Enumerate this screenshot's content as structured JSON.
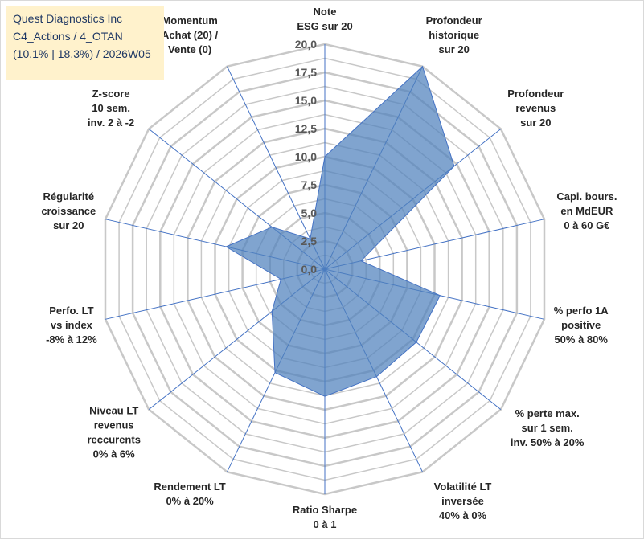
{
  "title_box": {
    "line1": "Quest Diagnostics Inc",
    "line2": "C4_Actions / 4_OTAN",
    "line3": "(10,1% | 18,3%) / 2026W05"
  },
  "colors": {
    "fill": "#4f81bd",
    "grid": "#c8c8c8",
    "spoke": "#4472c4"
  },
  "chart_data": {
    "type": "radar",
    "r_range": [
      0,
      20
    ],
    "r_ticks": [
      "0,0",
      "2,5",
      "5,0",
      "7,5",
      "10,0",
      "12,5",
      "15,0",
      "17,5",
      "20,0"
    ],
    "grid": true,
    "categories": [
      [
        "Note",
        "ESG sur 20"
      ],
      [
        "Profondeur",
        "historique",
        "sur 20"
      ],
      [
        "Profondeur",
        "revenus",
        "sur 20"
      ],
      [
        "Capi. bours.",
        "en MdEUR",
        "0 à 60 G€"
      ],
      [
        "% perfo 1A",
        "positive",
        "50% à 80%"
      ],
      [
        "% perte max.",
        "sur 1 sem.",
        "inv. 50% à 20%"
      ],
      [
        "Volatilité LT",
        "inversée",
        "40% à 0%"
      ],
      [
        "Ratio Sharpe",
        "0 à 1"
      ],
      [
        "Rendement LT",
        "0% à 20%"
      ],
      [
        "Niveau LT",
        "revenus",
        "reccurents",
        "0% à 6%"
      ],
      [
        "Perfo. LT",
        "vs index",
        "-8% à 12%"
      ],
      [
        "Régularité",
        "croissance",
        "sur 20"
      ],
      [
        "Z-score",
        "10 sem.",
        "inv. 2 à -2"
      ],
      [
        "Momentum",
        "Achat (20) /",
        "Vente (0)"
      ]
    ],
    "values": [
      10.0,
      20.0,
      14.7,
      3.3,
      10.5,
      10.4,
      10.6,
      11.3,
      10.2,
      6.0,
      4.0,
      9.0,
      6.0,
      3.0
    ]
  }
}
